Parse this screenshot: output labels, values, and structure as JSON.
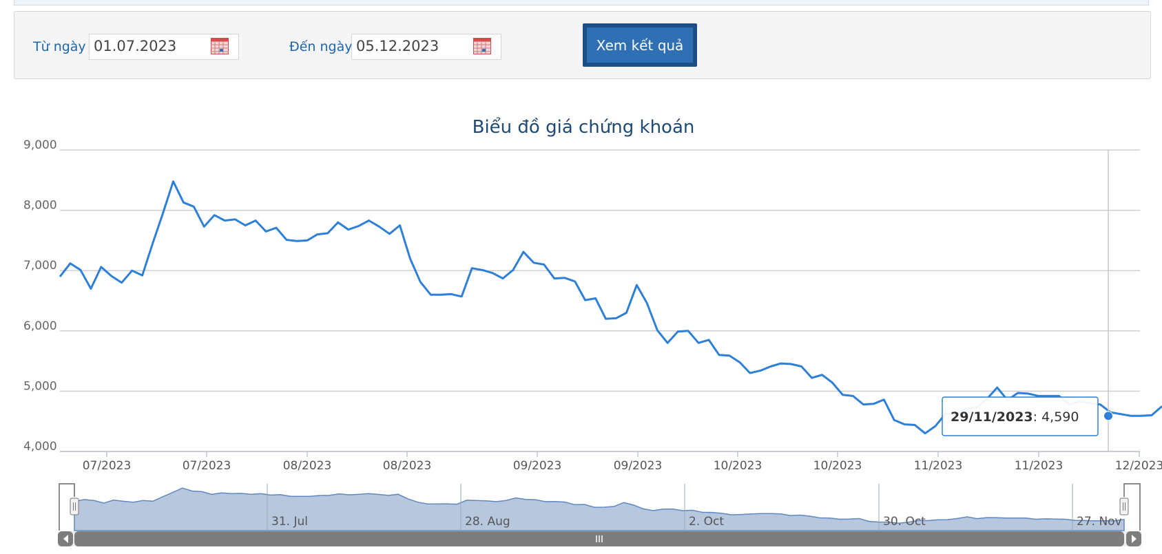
{
  "filter": {
    "from_label": "Từ ngày",
    "from_value": "01.07.2023",
    "to_label": "Đến ngày",
    "to_value": "05.12.2023",
    "submit_label": "Xem kết quả"
  },
  "chart_data": {
    "type": "line",
    "title": "Biểu đồ giá chứng khoán",
    "xlabel": "",
    "ylabel": "",
    "ylim": [
      4000,
      9000
    ],
    "yticks": [
      "4,000",
      "5,000",
      "6,000",
      "7,000",
      "8,000",
      "9,000"
    ],
    "xticks": [
      "07/2023",
      "07/2023",
      "08/2023",
      "08/2023",
      "09/2023",
      "09/2023",
      "10/2023",
      "10/2023",
      "11/2023",
      "11/2023",
      "12/2023"
    ],
    "grid": true,
    "line_color": "#2e7fd6",
    "series": [
      {
        "values": [
          6900,
          7120,
          7010,
          6700,
          7060,
          6910,
          6800,
          7000,
          6920,
          7450,
          7950,
          8480,
          8130,
          8060,
          7730,
          7920,
          7830,
          7850,
          7750,
          7830,
          7650,
          7710,
          7510,
          7490,
          7500,
          7600,
          7620,
          7800,
          7680,
          7740,
          7830,
          7730,
          7610,
          7750,
          7200,
          6810,
          6600,
          6600,
          6610,
          6570,
          7040,
          7010,
          6960,
          6870,
          7010,
          7310,
          7130,
          7100,
          6870,
          6880,
          6820,
          6510,
          6540,
          6200,
          6210,
          6300,
          6760,
          6460,
          6010,
          5800,
          5990,
          6000,
          5800,
          5850,
          5600,
          5590,
          5480,
          5300,
          5340,
          5410,
          5460,
          5450,
          5410,
          5220,
          5270,
          5140,
          4940,
          4920,
          4780,
          4790,
          4860,
          4520,
          4450,
          4440,
          4300,
          4420,
          4630,
          4610,
          4710,
          4730,
          4870,
          5060,
          4850,
          4970,
          4960,
          4920,
          4920,
          4920,
          4780,
          4830,
          4800,
          4780,
          4650,
          4620,
          4590,
          4590,
          4600,
          4750
        ]
      }
    ],
    "tooltip": {
      "date": "29/11/2023",
      "value": "4,590",
      "index": 104
    },
    "navigator": {
      "labels": [
        "31. Jul",
        "28. Aug",
        "2. Oct",
        "30. Oct",
        "27. Nov"
      ]
    }
  }
}
